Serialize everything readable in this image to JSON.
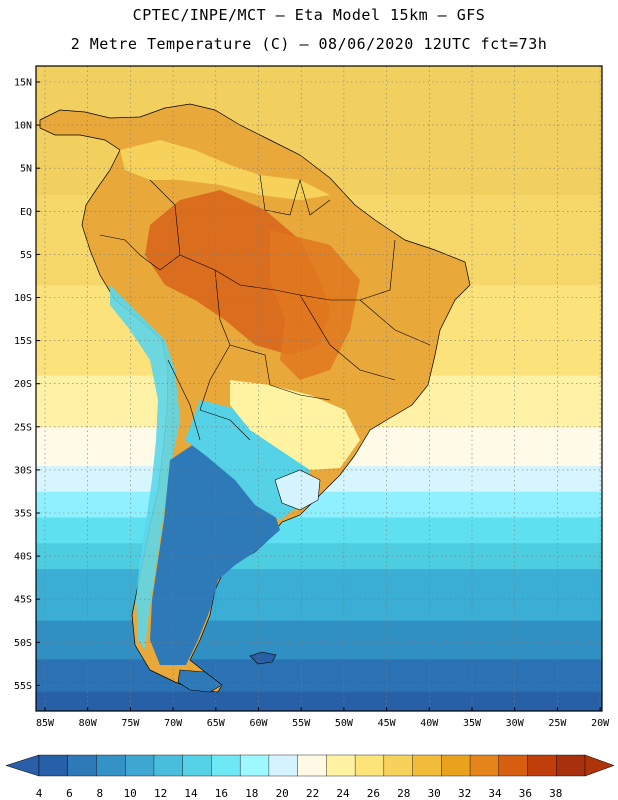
{
  "header": {
    "line1": "CPTEC/INPE/MCT –  Eta Model 15km – GFS",
    "line2": "2 Metre Temperature (C) – 08/06/2020 12UTC fct=73h"
  },
  "map": {
    "lat_labels": [
      "15N",
      "10N",
      "5N",
      "EQ",
      "5S",
      "10S",
      "15S",
      "20S",
      "25S",
      "30S",
      "35S",
      "40S",
      "45S",
      "50S",
      "55S"
    ],
    "lon_labels": [
      "85W",
      "80W",
      "75W",
      "70W",
      "65W",
      "60W",
      "55W",
      "50W",
      "45W",
      "40W",
      "35W",
      "30W",
      "25W",
      "20W"
    ],
    "ocean_bands": [
      {
        "temp": "27",
        "color": "#f2d060"
      },
      {
        "temp": "26",
        "color": "#f6d86a"
      },
      {
        "temp": "25",
        "color": "#fbe27a"
      },
      {
        "temp": "23",
        "color": "#fff2a6"
      },
      {
        "temp": "21",
        "color": "#fffbe8"
      },
      {
        "temp": "19",
        "color": "#d7f5ff"
      },
      {
        "temp": "17",
        "color": "#8ff0ff"
      },
      {
        "temp": "15",
        "color": "#5ee0f0"
      },
      {
        "temp": "13",
        "color": "#4ccde0"
      },
      {
        "temp": "11",
        "color": "#3aaed4"
      },
      {
        "temp": "9",
        "color": "#3090c4"
      },
      {
        "temp": "7",
        "color": "#2a72b4"
      },
      {
        "temp": "5",
        "color": "#2860a8"
      }
    ]
  },
  "colorbar": {
    "values": [
      "4",
      "6",
      "8",
      "10",
      "12",
      "14",
      "16",
      "18",
      "20",
      "22",
      "24",
      "26",
      "28",
      "30",
      "32",
      "34",
      "36",
      "38"
    ],
    "colors": [
      "#2660a8",
      "#2e7ab8",
      "#3592c6",
      "#3ea8d2",
      "#48bedc",
      "#55d2e6",
      "#6ee8f4",
      "#9ef8ff",
      "#d6f4ff",
      "#fffae6",
      "#fff2a0",
      "#fce478",
      "#f6d25a",
      "#f0bc3a",
      "#eaa21c",
      "#e4841a",
      "#d65e0e",
      "#c03e0a",
      "#a8300c"
    ],
    "left_arrow_color": "#2a5ea8",
    "right_arrow_color": "#b0340a"
  }
}
